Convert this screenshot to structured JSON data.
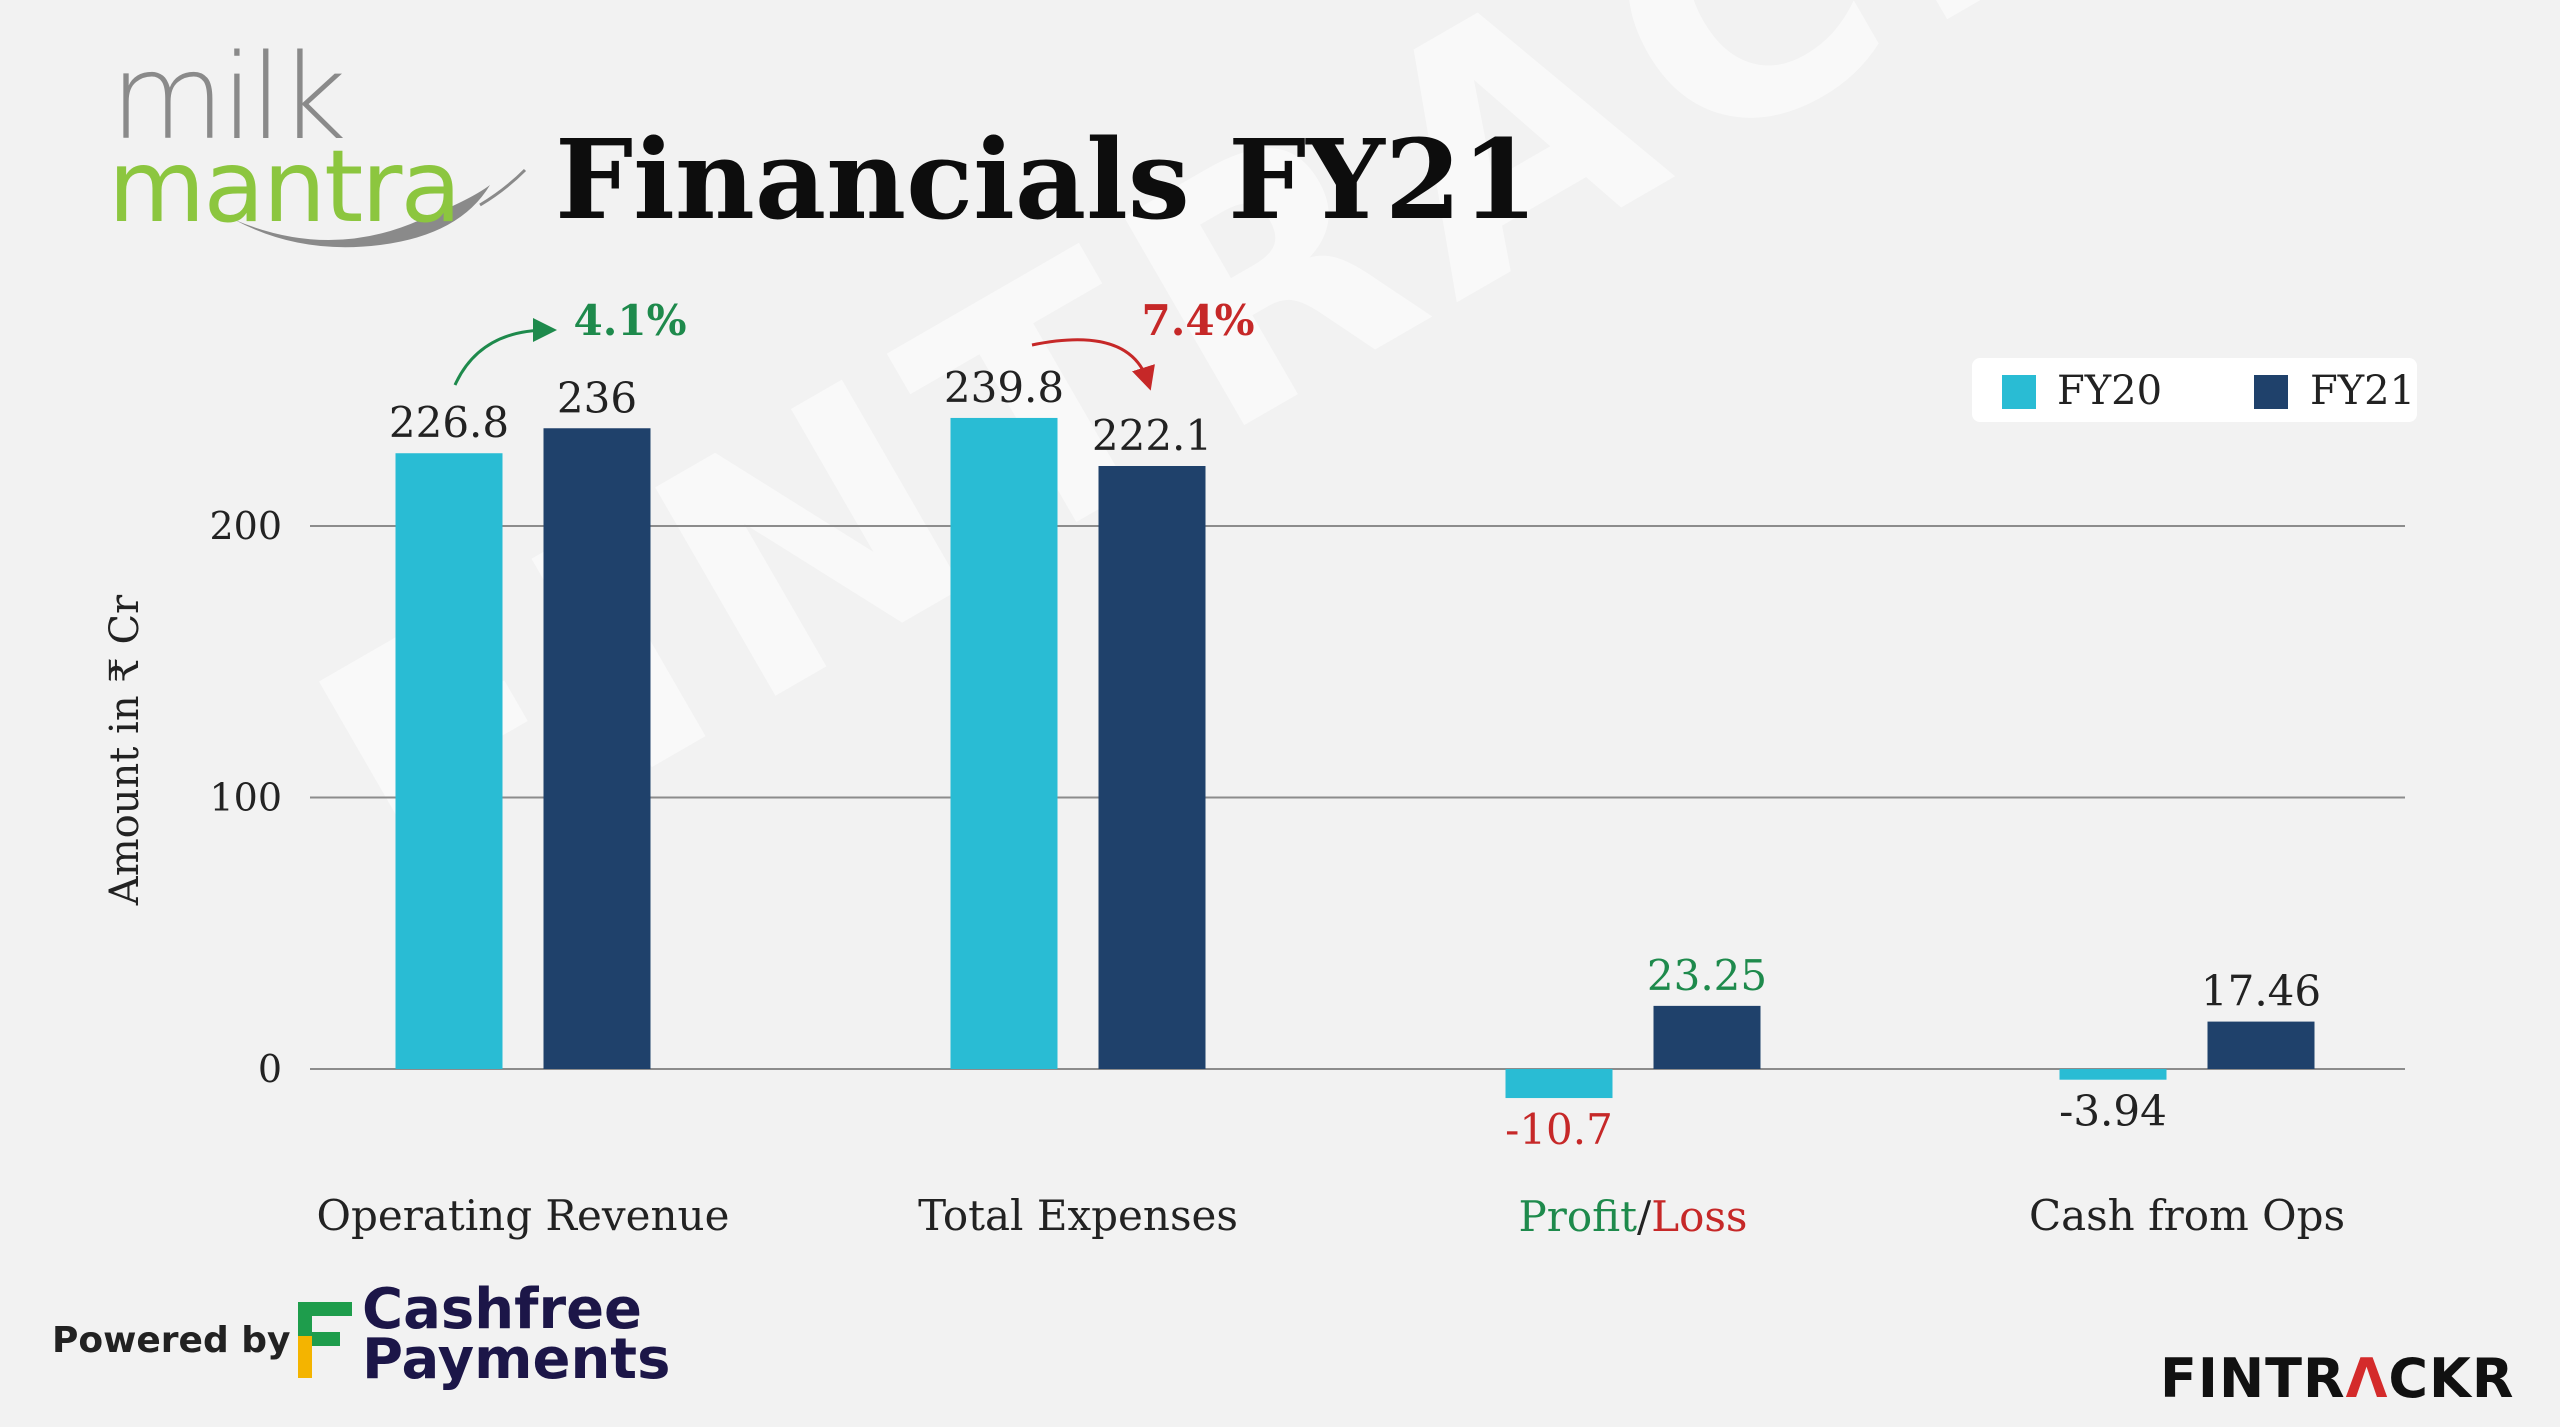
{
  "header": {
    "logo_top": "milk",
    "logo_bottom": "mantra",
    "title": "Financials FY21"
  },
  "watermark": "FINTRACKR",
  "footer": {
    "powered_by": "Powered by",
    "sponsor_line1": "Cashfree",
    "sponsor_line2": "Payments",
    "brand_part1": "FINTR",
    "brand_highlight": "Λ",
    "brand_part2": "CKR"
  },
  "colors": {
    "fy20": "#29bcd4",
    "fy21": "#1f416b",
    "positive": "#1e8a4c",
    "negative": "#c62828",
    "grid": "#8c8c8c",
    "text": "#222222"
  },
  "legend": {
    "fy20": "FY20",
    "fy21": "FY21"
  },
  "profit_loss": {
    "profit": "Profit",
    "sep": "/",
    "loss": "Loss"
  },
  "chart_data": {
    "type": "bar",
    "title": "Financials FY21",
    "ylabel": "Amount in ₹ Cr",
    "xlabel": "",
    "ylim": [
      -20,
      250
    ],
    "yticks": [
      0,
      100,
      200
    ],
    "grid": true,
    "legend_position": "top-right",
    "categories": [
      "Operating Revenue",
      "Total Expenses",
      "Profit/Loss",
      "Cash from Ops"
    ],
    "series": [
      {
        "name": "FY20",
        "values": [
          226.8,
          239.8,
          -10.7,
          -3.94
        ],
        "labels": [
          "226.8",
          "239.8",
          "-10.7",
          "-3.94"
        ]
      },
      {
        "name": "FY21",
        "values": [
          236,
          222.1,
          23.25,
          17.46
        ],
        "labels": [
          "236",
          "222.1",
          "23.25",
          "17.46"
        ]
      }
    ],
    "annotations": [
      {
        "text": "4.1%",
        "category": "Operating Revenue",
        "direction": "up"
      },
      {
        "text": "7.4%",
        "category": "Total Expenses",
        "direction": "down"
      }
    ]
  }
}
